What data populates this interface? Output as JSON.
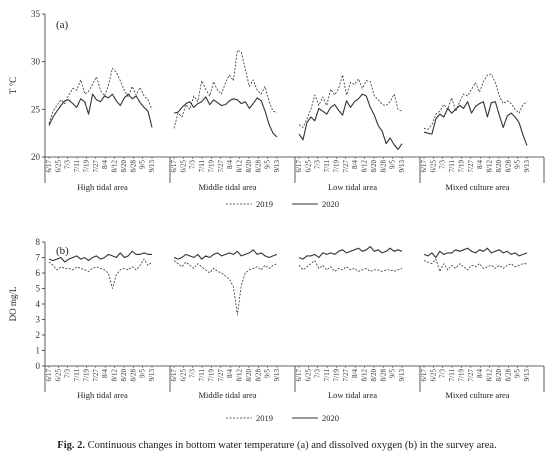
{
  "caption": {
    "label": "Fig. 2.",
    "text": "Continuous changes in bottom water temperature (a) and dissolved oxygen (b) in the survey area."
  },
  "colors": {
    "line": "#333333",
    "axis": "#333333"
  },
  "chart_data": [
    {
      "type": "line",
      "panel_label": "(a)",
      "ylabel": "T °C",
      "ylim": [
        20,
        35
      ],
      "yticks": [
        20,
        25,
        30,
        35
      ],
      "groups": [
        "High tidal area",
        "Middle tidal area",
        "Low tidal area",
        "Mixed culture area"
      ],
      "date_labels": [
        "6/17",
        "6/25",
        "7/3",
        "7/11",
        "7/19",
        "7/27",
        "8/4",
        "8/12",
        "8/20",
        "8/28",
        "9/5",
        "9/13"
      ],
      "legend": [
        {
          "name": "2019",
          "style": "dashed"
        },
        {
          "name": "2020",
          "style": "solid"
        }
      ],
      "series": [
        {
          "name": "2019",
          "style": "dashed",
          "groups": [
            [
              23.5,
              24.8,
              25.4,
              26.0,
              25.6,
              26.5,
              27.2,
              27.0,
              28.1,
              26.6,
              26.9,
              27.6,
              28.4,
              27.0,
              26.4,
              27.5,
              29.3,
              28.9,
              28.0,
              27.0,
              26.3,
              27.4,
              26.5,
              27.3,
              26.4,
              26.0,
              25.0
            ],
            [
              23.0,
              24.6,
              24.2,
              25.5,
              25.0,
              26.4,
              25.8,
              28.0,
              27.1,
              26.4,
              27.9,
              27.0,
              26.6,
              27.8,
              28.6,
              28.0,
              31.2,
              31.0,
              29.2,
              27.4,
              28.1,
              27.0,
              26.6,
              27.4,
              25.8,
              24.8,
              24.7
            ],
            [
              23.4,
              23.1,
              24.0,
              25.0,
              26.5,
              25.4,
              26.3,
              25.4,
              27.1,
              26.5,
              27.2,
              28.6,
              26.5,
              27.8,
              27.6,
              28.2,
              27.2,
              28.0,
              27.9,
              26.4,
              26.0,
              25.5,
              25.4,
              25.8,
              26.6,
              25.0,
              24.8
            ],
            [
              23.0,
              22.9,
              23.4,
              24.5,
              24.8,
              25.5,
              25.0,
              26.2,
              24.8,
              25.8,
              26.6,
              26.4,
              27.1,
              27.8,
              26.8,
              27.9,
              28.6,
              28.7,
              27.8,
              26.4,
              25.6,
              25.9,
              25.6,
              25.0,
              24.6,
              25.5,
              25.8
            ]
          ]
        },
        {
          "name": "2020",
          "style": "solid",
          "groups": [
            [
              23.3,
              24.2,
              24.8,
              25.4,
              25.9,
              26.0,
              25.6,
              25.2,
              26.1,
              25.8,
              24.5,
              26.6,
              26.0,
              25.8,
              26.4,
              26.2,
              26.6,
              25.9,
              25.4,
              26.2,
              26.6,
              26.1,
              26.4,
              25.7,
              25.2,
              24.8,
              23.1
            ],
            [
              24.6,
              24.7,
              25.2,
              25.6,
              25.8,
              25.2,
              25.6,
              25.8,
              26.3,
              25.5,
              26.0,
              25.7,
              25.4,
              25.5,
              25.9,
              26.1,
              26.0,
              25.6,
              25.8,
              25.1,
              25.6,
              26.2,
              25.9,
              24.8,
              23.4,
              22.5,
              22.1
            ],
            [
              22.4,
              21.8,
              23.6,
              24.2,
              23.8,
              25.1,
              24.8,
              24.5,
              25.2,
              25.5,
              24.9,
              24.4,
              25.9,
              25.2,
              25.8,
              26.1,
              26.6,
              26.4,
              25.2,
              24.4,
              23.3,
              22.7,
              21.4,
              22.0,
              21.3,
              20.8,
              21.4
            ],
            [
              22.6,
              22.5,
              22.4,
              24.0,
              24.5,
              24.2,
              25.1,
              24.6,
              25.0,
              25.4,
              25.1,
              25.8,
              24.6,
              25.3,
              25.6,
              25.8,
              24.2,
              25.7,
              25.8,
              24.4,
              23.1,
              24.3,
              24.6,
              24.2,
              23.6,
              22.3,
              21.2
            ]
          ]
        }
      ]
    },
    {
      "type": "line",
      "panel_label": "(b)",
      "ylabel": "DO mg/L",
      "ylim": [
        0,
        8
      ],
      "yticks": [
        0,
        1,
        2,
        3,
        4,
        5,
        6,
        7,
        8
      ],
      "groups": [
        "High tidal area",
        "Middle tidal area",
        "Low tidal area",
        "Mixed culture area"
      ],
      "date_labels": [
        "6/17",
        "6/25",
        "7/3",
        "7/11",
        "7/19",
        "7/27",
        "8/4",
        "8/12",
        "8/20",
        "8/28",
        "9/5",
        "9/13"
      ],
      "legend": [
        {
          "name": "2019",
          "style": "dashed"
        },
        {
          "name": "2020",
          "style": "solid"
        }
      ],
      "series": [
        {
          "name": "2019",
          "style": "dashed",
          "groups": [
            [
              6.7,
              6.5,
              6.2,
              6.4,
              6.3,
              6.3,
              6.2,
              6.4,
              6.3,
              6.2,
              6.1,
              6.3,
              6.4,
              6.3,
              6.2,
              6.0,
              5.0,
              5.9,
              6.2,
              6.3,
              6.2,
              6.4,
              6.2,
              6.5,
              6.9,
              6.5,
              6.7
            ],
            [
              6.8,
              6.6,
              6.4,
              6.7,
              6.5,
              6.3,
              6.6,
              6.4,
              6.2,
              6.0,
              6.3,
              6.1,
              6.0,
              5.8,
              5.6,
              5.1,
              3.3,
              5.2,
              6.0,
              6.2,
              6.3,
              6.4,
              6.2,
              6.5,
              6.3,
              6.5,
              6.6
            ],
            [
              6.5,
              6.2,
              6.4,
              6.6,
              6.8,
              6.3,
              6.5,
              6.2,
              6.4,
              6.1,
              6.3,
              6.2,
              6.4,
              6.2,
              6.3,
              6.1,
              6.2,
              6.3,
              6.1,
              6.2,
              6.2,
              6.1,
              6.2,
              6.2,
              6.1,
              6.2,
              6.3
            ],
            [
              6.8,
              6.7,
              6.6,
              6.9,
              6.1,
              6.6,
              6.2,
              6.5,
              6.3,
              6.6,
              6.4,
              6.2,
              6.5,
              6.4,
              6.6,
              6.3,
              6.4,
              6.5,
              6.3,
              6.5,
              6.3,
              6.5,
              6.6,
              6.4,
              6.5,
              6.6,
              6.6
            ]
          ]
        },
        {
          "name": "2020",
          "style": "solid",
          "groups": [
            [
              6.9,
              6.8,
              6.9,
              7.0,
              6.7,
              6.9,
              7.0,
              7.1,
              6.9,
              7.0,
              6.8,
              7.0,
              7.1,
              6.9,
              7.0,
              7.2,
              7.1,
              7.0,
              7.3,
              7.0,
              7.1,
              7.4,
              7.2,
              7.2,
              7.3,
              7.2,
              7.2
            ],
            [
              7.0,
              6.9,
              7.0,
              7.2,
              7.1,
              7.0,
              7.2,
              6.9,
              7.1,
              7.0,
              7.2,
              7.3,
              7.1,
              7.2,
              7.3,
              7.2,
              7.4,
              7.1,
              7.2,
              7.3,
              7.5,
              7.2,
              7.3,
              7.1,
              7.0,
              7.1,
              7.2
            ],
            [
              7.0,
              6.9,
              7.1,
              7.1,
              7.2,
              7.0,
              7.3,
              7.2,
              7.3,
              7.2,
              7.4,
              7.5,
              7.3,
              7.4,
              7.5,
              7.6,
              7.4,
              7.5,
              7.7,
              7.4,
              7.5,
              7.3,
              7.4,
              7.6,
              7.4,
              7.5,
              7.4
            ],
            [
              7.2,
              7.1,
              7.3,
              7.0,
              7.4,
              7.2,
              7.3,
              7.3,
              7.5,
              7.4,
              7.5,
              7.6,
              7.4,
              7.3,
              7.5,
              7.4,
              7.6,
              7.3,
              7.4,
              7.5,
              7.3,
              7.4,
              7.2,
              7.3,
              7.1,
              7.2,
              7.3
            ]
          ]
        }
      ]
    }
  ]
}
